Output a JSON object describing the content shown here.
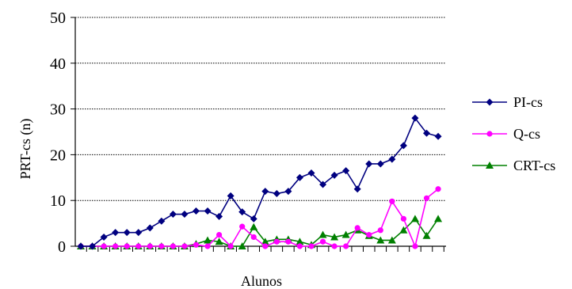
{
  "chart_data": {
    "type": "line",
    "title": "",
    "xlabel": "Alunos",
    "ylabel": "PRT-cs  (n)",
    "ylim": [
      0,
      50
    ],
    "yticks": [
      0,
      10,
      20,
      30,
      40,
      50
    ],
    "grid": "horizontal dotted",
    "legend_position": "right",
    "series": [
      {
        "name": "PI-cs",
        "color": "#000080",
        "marker": "diamond",
        "values": [
          0,
          0,
          2,
          3,
          3,
          3,
          4,
          5.5,
          7,
          7,
          7.7,
          7.7,
          6.5,
          11,
          7.5,
          6,
          12,
          11.5,
          12,
          15,
          16,
          13.5,
          15.5,
          16.5,
          12.5,
          18,
          18,
          19,
          22,
          28,
          24.7,
          24
        ]
      },
      {
        "name": "Q-cs",
        "color": "#ff00ff",
        "marker": "circle",
        "values": [
          0,
          0,
          0,
          0,
          0,
          0,
          0,
          0,
          0,
          0,
          0.3,
          0,
          2.5,
          0,
          4.3,
          2,
          0,
          1,
          1,
          0,
          0,
          1,
          0,
          0,
          4,
          2.5,
          3.5,
          9.8,
          6,
          0,
          10.5,
          12.5
        ]
      },
      {
        "name": "CRT-cs",
        "color": "#008000",
        "marker": "triangle",
        "values": [
          0,
          0,
          0,
          0,
          0,
          0,
          0,
          0,
          0,
          0,
          0.5,
          1.3,
          1,
          0,
          0,
          4.2,
          1,
          1.5,
          1.5,
          1,
          0.3,
          2.5,
          2,
          2.5,
          3.5,
          2.3,
          1.3,
          1.3,
          3.5,
          6,
          2.3,
          6
        ]
      }
    ]
  }
}
